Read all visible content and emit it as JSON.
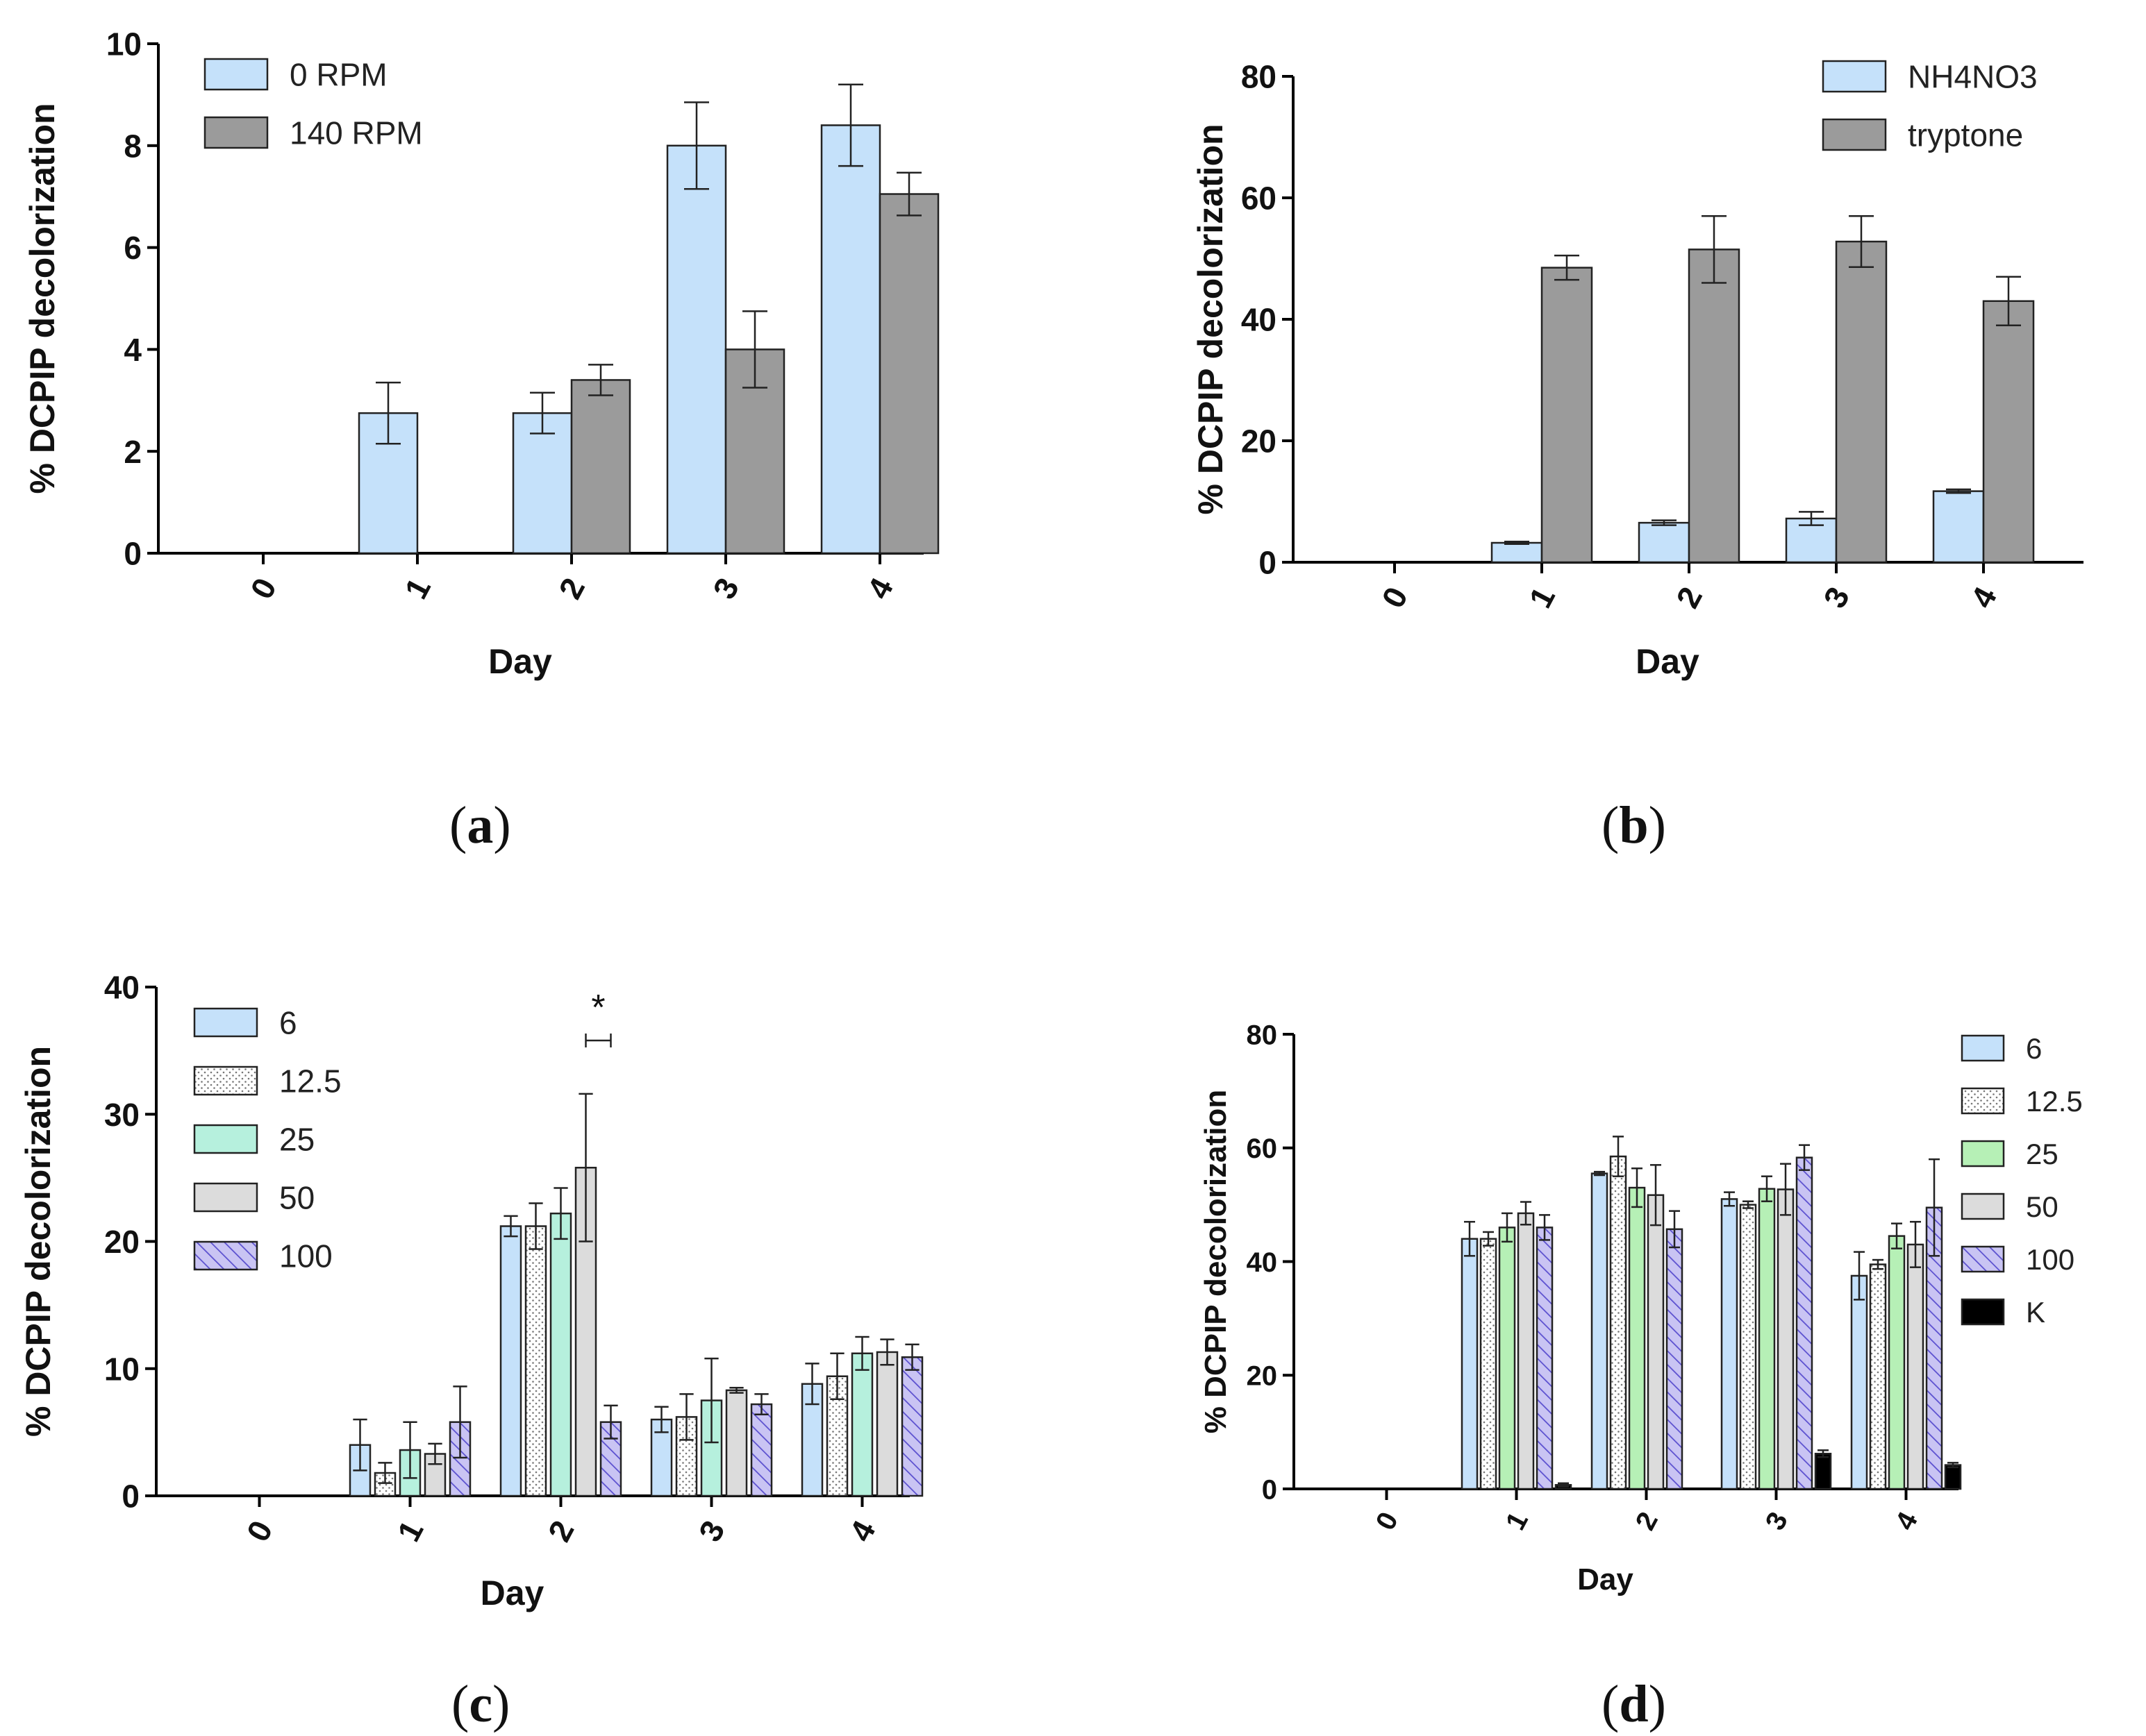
{
  "chart_data": [
    {
      "type": "bar",
      "panel": "a",
      "title": "",
      "xlabel": "Day",
      "ylabel": "% DCPIP decolorization",
      "ylim": [
        0,
        10
      ],
      "yticks": [
        "0",
        "2",
        "4",
        "6",
        "8",
        "10"
      ],
      "categories": [
        "0",
        "1",
        "2",
        "3",
        "4"
      ],
      "legend_position": "top-left",
      "series": [
        {
          "name": "0 RPM",
          "fill": "#c5e1fa",
          "pattern": "none",
          "values": [
            0,
            2.75,
            2.75,
            8.0,
            8.4
          ],
          "errors": [
            0,
            0.6,
            0.4,
            0.85,
            0.8
          ]
        },
        {
          "name": "140 RPM",
          "fill": "#9b9b9b",
          "pattern": "none",
          "values": [
            0,
            0,
            3.4,
            4.0,
            7.05
          ],
          "errors": [
            0,
            0,
            0.3,
            0.75,
            0.42
          ]
        }
      ]
    },
    {
      "type": "bar",
      "panel": "b",
      "title": "",
      "xlabel": "Day",
      "ylabel": "% DCPIP decolorization",
      "ylim": [
        0,
        80
      ],
      "yticks": [
        "0",
        "20",
        "40",
        "60",
        "80"
      ],
      "categories": [
        "0",
        "1",
        "2",
        "3",
        "4"
      ],
      "legend_position": "top-right",
      "series": [
        {
          "name": "NH4NO3",
          "fill": "#c5e1fa",
          "pattern": "none",
          "values": [
            0,
            3.2,
            6.5,
            7.2,
            11.7
          ],
          "errors": [
            0,
            0.2,
            0.4,
            1.1,
            0.3
          ]
        },
        {
          "name": "tryptone",
          "fill": "#9b9b9b",
          "pattern": "none",
          "values": [
            0,
            48.5,
            51.5,
            52.8,
            43.0
          ],
          "errors": [
            0,
            2.0,
            5.5,
            4.2,
            4.0
          ]
        }
      ]
    },
    {
      "type": "bar",
      "panel": "c",
      "title": "",
      "xlabel": "Day",
      "ylabel": "% DCPIP decolorization",
      "ylim": [
        0,
        40
      ],
      "yticks": [
        "0",
        "10",
        "20",
        "30",
        "40"
      ],
      "categories": [
        "0",
        "1",
        "2",
        "3",
        "4"
      ],
      "legend_position": "top-left",
      "annotation": {
        "text": "*",
        "category_index": 2,
        "between_series": [
          3,
          4
        ]
      },
      "series": [
        {
          "name": "6",
          "fill": "#c5e1fa",
          "pattern": "none",
          "values": [
            0,
            4.0,
            21.2,
            6.0,
            8.8
          ],
          "errors": [
            0,
            2.0,
            0.8,
            1.0,
            1.6
          ]
        },
        {
          "name": "12.5",
          "fill": "#ffffff",
          "pattern": "dots",
          "values": [
            0,
            1.8,
            21.2,
            6.2,
            9.4
          ],
          "errors": [
            0,
            0.8,
            1.8,
            1.8,
            1.8
          ]
        },
        {
          "name": "25",
          "fill": "#b6f0dd",
          "pattern": "none",
          "values": [
            0,
            3.6,
            22.2,
            7.5,
            11.2
          ],
          "errors": [
            0,
            2.2,
            2.0,
            3.3,
            1.3
          ]
        },
        {
          "name": "50",
          "fill": "#dcdcdc",
          "pattern": "none",
          "values": [
            0,
            3.3,
            25.8,
            8.3,
            11.3
          ],
          "errors": [
            0,
            0.8,
            5.8,
            0.2,
            1.0
          ]
        },
        {
          "name": "100",
          "fill": "#c9c4f3",
          "pattern": "hatch",
          "values": [
            0,
            5.8,
            5.8,
            7.2,
            10.9
          ],
          "errors": [
            0,
            2.8,
            1.3,
            0.8,
            1.0
          ]
        }
      ]
    },
    {
      "type": "bar",
      "panel": "d",
      "title": "",
      "xlabel": "Day",
      "ylabel": "% DCPIP decolorization",
      "ylim": [
        0,
        80
      ],
      "yticks": [
        "0",
        "20",
        "40",
        "60",
        "80"
      ],
      "categories": [
        "0",
        "1",
        "2",
        "3",
        "4"
      ],
      "legend_position": "right",
      "series": [
        {
          "name": "6",
          "fill": "#c5e1fa",
          "pattern": "none",
          "values": [
            0,
            44.0,
            55.5,
            51.0,
            37.5
          ],
          "errors": [
            0,
            3.0,
            0.3,
            1.2,
            4.2
          ]
        },
        {
          "name": "12.5",
          "fill": "#ffffff",
          "pattern": "dots",
          "values": [
            0,
            44.0,
            58.5,
            50.0,
            39.5
          ],
          "errors": [
            0,
            1.2,
            3.5,
            0.6,
            0.8
          ]
        },
        {
          "name": "25",
          "fill": "#b6f0b6",
          "pattern": "none",
          "values": [
            0,
            46.0,
            53.0,
            52.8,
            44.5
          ],
          "errors": [
            0,
            2.5,
            3.4,
            2.2,
            2.2
          ]
        },
        {
          "name": "50",
          "fill": "#dcdcdc",
          "pattern": "none",
          "values": [
            0,
            48.5,
            51.7,
            52.7,
            43.0
          ],
          "errors": [
            0,
            2.0,
            5.3,
            4.5,
            4.0
          ]
        },
        {
          "name": "100",
          "fill": "#c9c4f3",
          "pattern": "hatch",
          "values": [
            0,
            46.0,
            45.7,
            58.3,
            49.5
          ],
          "errors": [
            0,
            2.2,
            3.2,
            2.2,
            8.5
          ]
        },
        {
          "name": "K",
          "fill": "#000000",
          "pattern": "none",
          "values": [
            0,
            0.7,
            0,
            6.2,
            4.2
          ],
          "errors": [
            0,
            0.3,
            0,
            0.6,
            0.4
          ]
        }
      ]
    }
  ],
  "panel_labels": {
    "a": {
      "open": "(",
      "letter": "a",
      "close": ")"
    },
    "b": {
      "open": "(",
      "letter": "b",
      "close": ")"
    },
    "c": {
      "open": "(",
      "letter": "c",
      "close": ")"
    },
    "d": {
      "open": "(",
      "letter": "d",
      "close": ")"
    }
  }
}
